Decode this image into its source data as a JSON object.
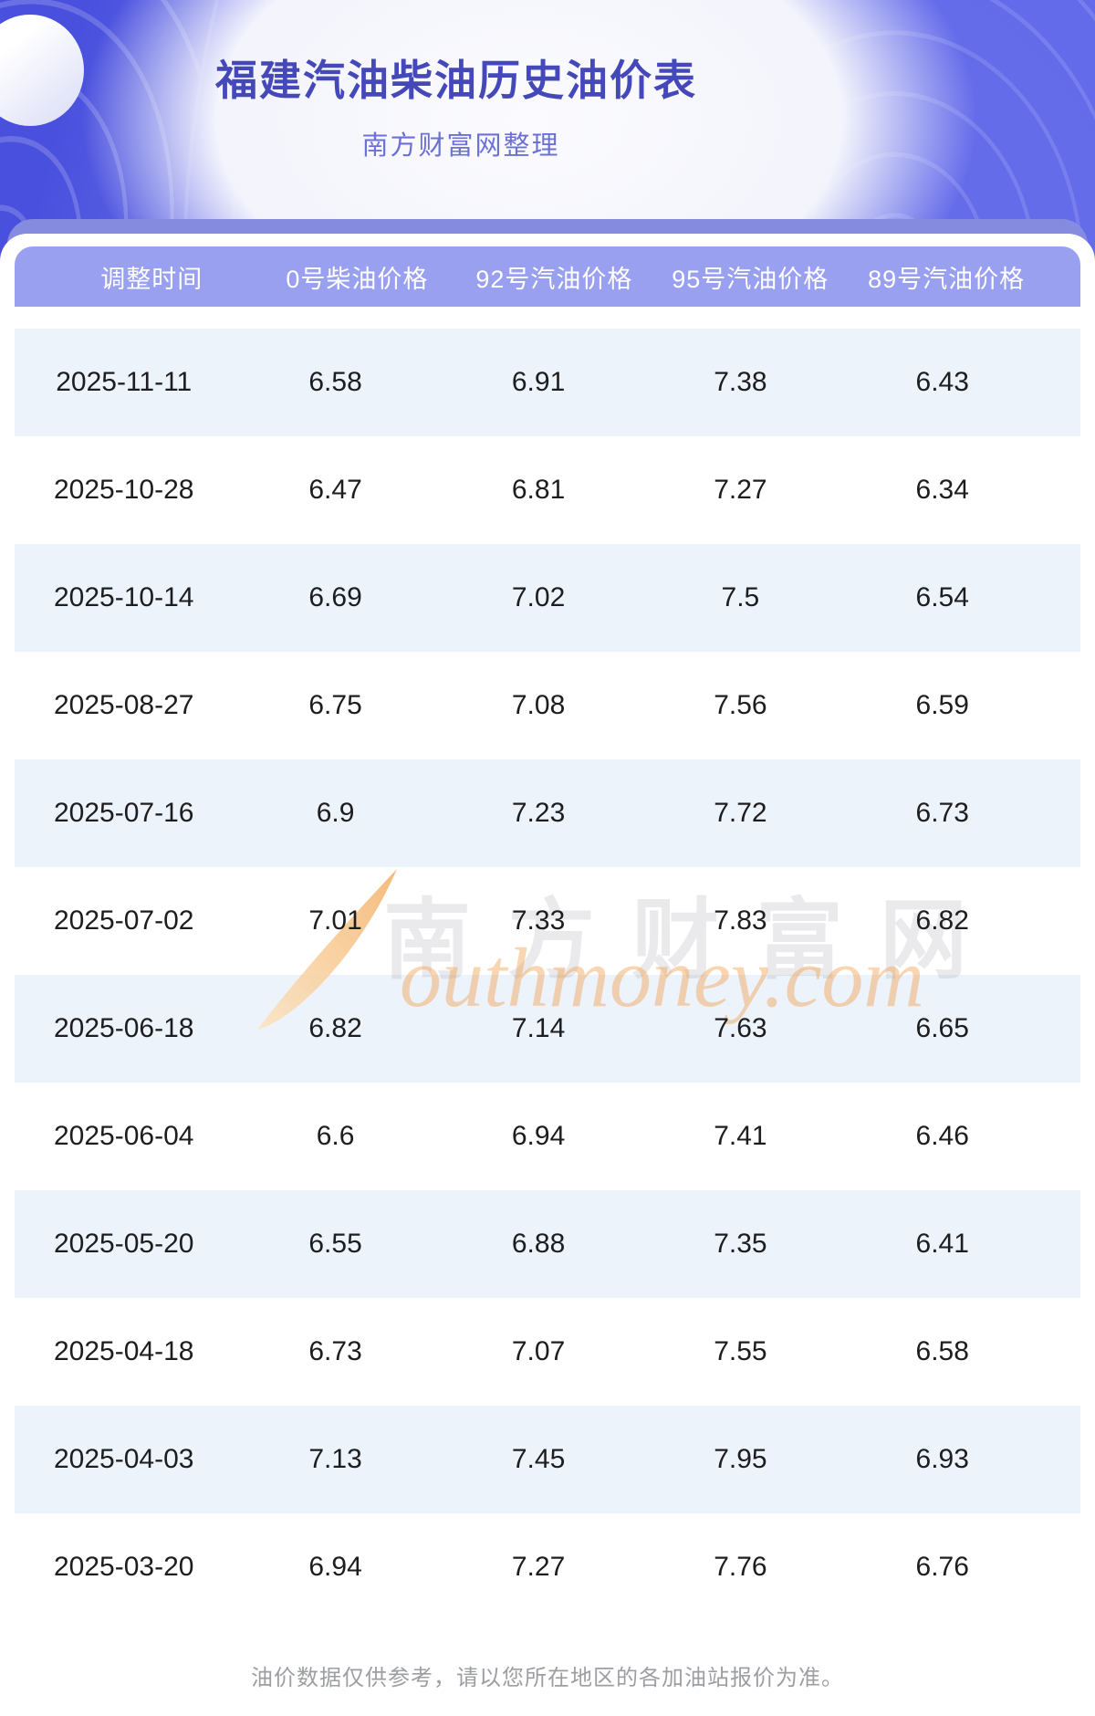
{
  "page": {
    "title": "福建汽油柴油历史油价表",
    "subtitle": "南方财富网整理",
    "footer_note": "油价数据仅供参考，请以您所在地区的各加油站报价为准。"
  },
  "table": {
    "columns": [
      "调整时间",
      "0号柴油价格",
      "92号汽油价格",
      "95号汽油价格",
      "89号汽油价格"
    ],
    "rows": [
      [
        "2025-11-11",
        "6.58",
        "6.91",
        "7.38",
        "6.43"
      ],
      [
        "2025-10-28",
        "6.47",
        "6.81",
        "7.27",
        "6.34"
      ],
      [
        "2025-10-14",
        "6.69",
        "7.02",
        "7.5",
        "6.54"
      ],
      [
        "2025-08-27",
        "6.75",
        "7.08",
        "7.56",
        "6.59"
      ],
      [
        "2025-07-16",
        "6.9",
        "7.23",
        "7.72",
        "6.73"
      ],
      [
        "2025-07-02",
        "7.01",
        "7.33",
        "7.83",
        "6.82"
      ],
      [
        "2025-06-18",
        "6.82",
        "7.14",
        "7.63",
        "6.65"
      ],
      [
        "2025-06-04",
        "6.6",
        "6.94",
        "7.41",
        "6.46"
      ],
      [
        "2025-05-20",
        "6.55",
        "6.88",
        "7.35",
        "6.41"
      ],
      [
        "2025-04-18",
        "6.73",
        "7.07",
        "7.55",
        "6.58"
      ],
      [
        "2025-04-03",
        "7.13",
        "7.45",
        "7.95",
        "6.93"
      ],
      [
        "2025-03-20",
        "6.94",
        "7.27",
        "7.76",
        "6.76"
      ]
    ]
  },
  "watermark": {
    "cjk": "南方财富网",
    "latin": "outhmoney.com"
  },
  "colors": {
    "title_text": "#4448b8",
    "subtitle_text": "#6c71d6",
    "table_header_bg": "#9aa0f0",
    "table_header_back_bar": "#858bdf",
    "row_alt_bg": "#ecf3fb",
    "row_text": "#1d1d1f",
    "hero_purple_left": "#4950de",
    "hero_purple_right": "#5f66e8",
    "watermark_orange": "#f09b46",
    "footer_text": "#9c9ea3"
  }
}
